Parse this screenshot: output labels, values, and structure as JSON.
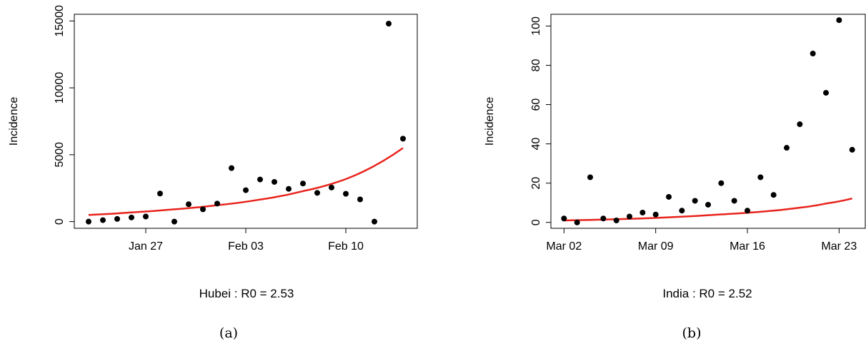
{
  "chart_data": [
    {
      "type": "scatter",
      "title": "",
      "xlabel": "Hubei : R0 = 2.53",
      "ylabel": "Incidence",
      "caption": "(a)",
      "x_ticks": [
        "Jan 27",
        "Feb 03",
        "Feb 10"
      ],
      "y_ticks": [
        "0",
        "5000",
        "10000",
        "15000"
      ],
      "xlim": [
        "2020-01-22",
        "2020-02-15"
      ],
      "ylim": [
        -500,
        15500
      ],
      "grid": false,
      "series": [
        {
          "kind": "points",
          "color": "#000000",
          "x": [
            "2020-01-23",
            "2020-01-24",
            "2020-01-25",
            "2020-01-26",
            "2020-01-27",
            "2020-01-28",
            "2020-01-29",
            "2020-01-30",
            "2020-01-31",
            "2020-02-01",
            "2020-02-02",
            "2020-02-03",
            "2020-02-04",
            "2020-02-05",
            "2020-02-06",
            "2020-02-07",
            "2020-02-08",
            "2020-02-09",
            "2020-02-10",
            "2020-02-11",
            "2020-02-12",
            "2020-02-13",
            "2020-02-14"
          ],
          "y": [
            0,
            110,
            200,
            310,
            380,
            2100,
            0,
            1300,
            920,
            1350,
            4000,
            2350,
            3150,
            2970,
            2450,
            2850,
            2150,
            2550,
            2080,
            1660,
            0,
            14800,
            6200
          ]
        },
        {
          "kind": "fit-line",
          "color": "#e8231c",
          "x": [
            "2020-01-23",
            "2020-01-26",
            "2020-01-29",
            "2020-02-01",
            "2020-02-04",
            "2020-02-07",
            "2020-02-10",
            "2020-02-14"
          ],
          "y": [
            500,
            690,
            920,
            1230,
            1650,
            2280,
            3180,
            5500
          ]
        }
      ]
    },
    {
      "type": "scatter",
      "title": "",
      "xlabel": "India : R0 = 2.52",
      "ylabel": "Incidence",
      "caption": "(b)",
      "x_ticks": [
        "Mar 02",
        "Mar 09",
        "Mar 16",
        "Mar 23"
      ],
      "y_ticks": [
        "0",
        "20",
        "40",
        "60",
        "80",
        "100"
      ],
      "xlim": [
        "2020-03-01",
        "2020-03-25"
      ],
      "ylim": [
        -3,
        106
      ],
      "grid": false,
      "series": [
        {
          "kind": "points",
          "color": "#000000",
          "x": [
            "2020-03-02",
            "2020-03-03",
            "2020-03-04",
            "2020-03-05",
            "2020-03-06",
            "2020-03-07",
            "2020-03-08",
            "2020-03-09",
            "2020-03-10",
            "2020-03-11",
            "2020-03-12",
            "2020-03-13",
            "2020-03-14",
            "2020-03-15",
            "2020-03-16",
            "2020-03-17",
            "2020-03-18",
            "2020-03-19",
            "2020-03-20",
            "2020-03-21",
            "2020-03-22",
            "2020-03-23",
            "2020-03-24"
          ],
          "y": [
            2,
            0,
            23,
            2,
            1,
            3,
            5,
            4,
            13,
            6,
            11,
            9,
            20,
            11,
            6,
            23,
            14,
            38,
            50,
            86,
            66,
            103,
            37
          ]
        },
        {
          "kind": "fit-line",
          "color": "#e8231c",
          "x": [
            "2020-03-02",
            "2020-03-06",
            "2020-03-10",
            "2020-03-14",
            "2020-03-17",
            "2020-03-20",
            "2020-03-22",
            "2020-03-24"
          ],
          "y": [
            1.0,
            1.6,
            2.6,
            4.1,
            5.4,
            7.5,
            9.6,
            12.2
          ]
        }
      ]
    }
  ]
}
